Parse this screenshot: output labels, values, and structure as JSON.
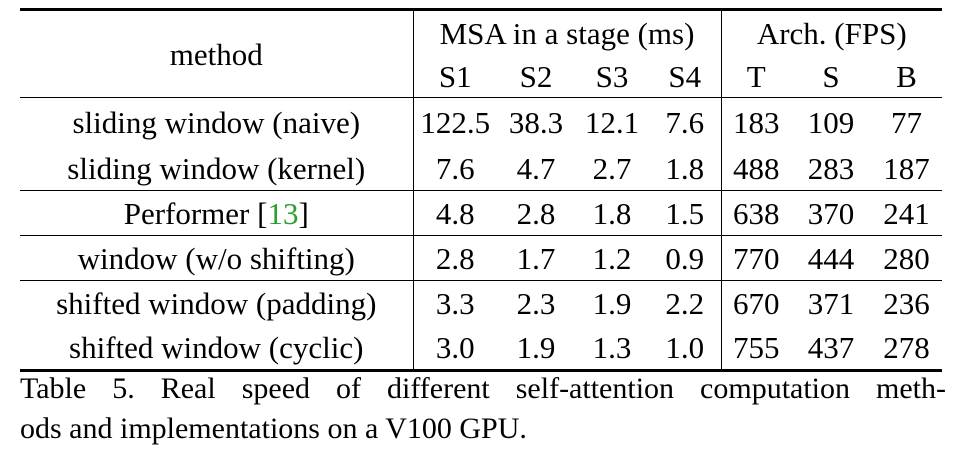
{
  "table": {
    "header": {
      "method_label": "method",
      "group_msa_label": "MSA in a stage (ms)",
      "group_arch_label": "Arch. (FPS)",
      "msa_columns": [
        "S1",
        "S2",
        "S3",
        "S4"
      ],
      "arch_columns": [
        "T",
        "S",
        "B"
      ]
    },
    "rows": [
      {
        "method": "sliding window (naive)",
        "ref": "",
        "msa": [
          "122.5",
          "38.3",
          "12.1",
          "7.6"
        ],
        "arch": [
          "183",
          "109",
          "77"
        ]
      },
      {
        "method": "sliding window (kernel)",
        "ref": "",
        "msa": [
          "7.6",
          "4.7",
          "2.7",
          "1.8"
        ],
        "arch": [
          "488",
          "283",
          "187"
        ]
      },
      {
        "method": "Performer",
        "ref": "13",
        "msa": [
          "4.8",
          "2.8",
          "1.8",
          "1.5"
        ],
        "arch": [
          "638",
          "370",
          "241"
        ]
      },
      {
        "method": "window (w/o shifting)",
        "ref": "",
        "msa": [
          "2.8",
          "1.7",
          "1.2",
          "0.9"
        ],
        "arch": [
          "770",
          "444",
          "280"
        ]
      },
      {
        "method": "shifted window (padding)",
        "ref": "",
        "msa": [
          "3.3",
          "2.3",
          "1.9",
          "2.2"
        ],
        "arch": [
          "670",
          "371",
          "236"
        ]
      },
      {
        "method": "shifted window (cyclic)",
        "ref": "",
        "msa": [
          "3.0",
          "1.9",
          "1.3",
          "1.0"
        ],
        "arch": [
          "755",
          "437",
          "278"
        ]
      }
    ]
  },
  "caption": {
    "line1": "Table 5. Real speed of different self-attention computation meth-",
    "line2": "ods and implementations on a V100 GPU."
  },
  "colors": {
    "text": "#000000",
    "citation_link": "#2ca02c",
    "background": "#ffffff"
  }
}
